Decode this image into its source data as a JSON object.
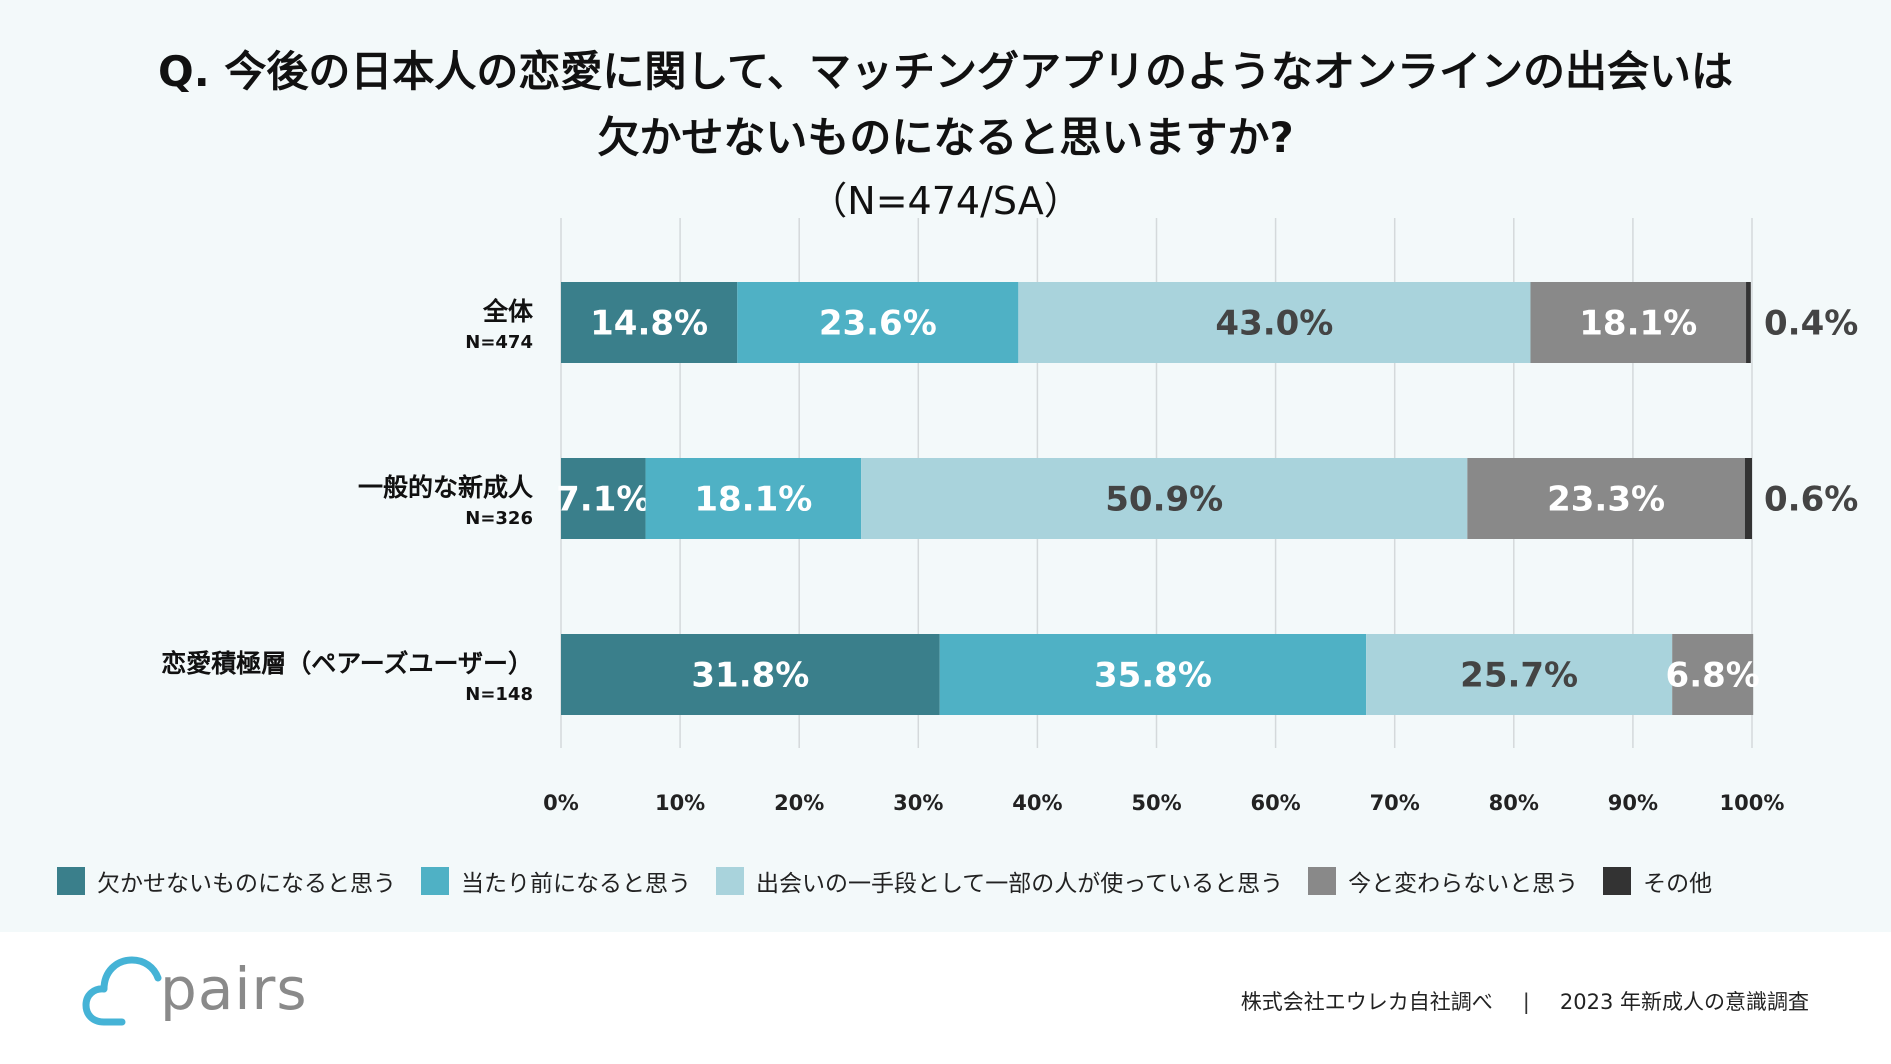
{
  "chart_data": {
    "type": "stacked-bar-horizontal",
    "title_line1": "Q. 今後の日本人の恋愛に関して、マッチングアプリのようなオンラインの出会いは",
    "title_line2": "欠かせないものになると思いますか?",
    "subtitle": "（N=474/SA）",
    "categories": [
      {
        "name": "全体",
        "n": "N=474"
      },
      {
        "name": "一般的な新成人",
        "n": "N=326"
      },
      {
        "name": "恋愛積極層（ペアーズユーザー）",
        "n": "N=148"
      }
    ],
    "series": [
      {
        "name": "欠かせないものになると思う",
        "color": "#3a7f8b",
        "label_color": "#ffffff",
        "values": [
          14.8,
          7.1,
          31.8
        ],
        "labels": [
          "14.8%",
          "7.1%",
          "31.8%"
        ]
      },
      {
        "name": "当たり前になると思う",
        "color": "#4fb1c5",
        "label_color": "#ffffff",
        "values": [
          23.6,
          18.1,
          35.8
        ],
        "labels": [
          "23.6%",
          "18.1%",
          "35.8%"
        ]
      },
      {
        "name": "出会いの一手段として一部の人が使っていると思う",
        "color": "#a9d3dc",
        "label_color": "#444444",
        "values": [
          43.0,
          50.9,
          25.7
        ],
        "labels": [
          "43.0%",
          "50.9%",
          "25.7%"
        ]
      },
      {
        "name": "今と変わらないと思う",
        "color": "#898989",
        "label_color": "#ffffff",
        "values": [
          18.1,
          23.3,
          6.8
        ],
        "labels": [
          "18.1%",
          "23.3%",
          "6.8%"
        ]
      },
      {
        "name": "その他",
        "color": "#333333",
        "label_color": "#444444",
        "values": [
          0.4,
          0.6,
          0.0
        ],
        "labels": [
          "0.4%",
          "0.6%",
          ""
        ]
      }
    ],
    "x_ticks": [
      "0%",
      "10%",
      "20%",
      "30%",
      "40%",
      "50%",
      "60%",
      "70%",
      "80%",
      "90%",
      "100%"
    ],
    "xlim": [
      0,
      100
    ],
    "grid": true,
    "legend_position": "bottom"
  },
  "footer": {
    "brand": "pairs",
    "credit_left": "株式会社エウレカ自社調べ",
    "separator": "|",
    "credit_right": "2023 年新成人の意識調査"
  }
}
